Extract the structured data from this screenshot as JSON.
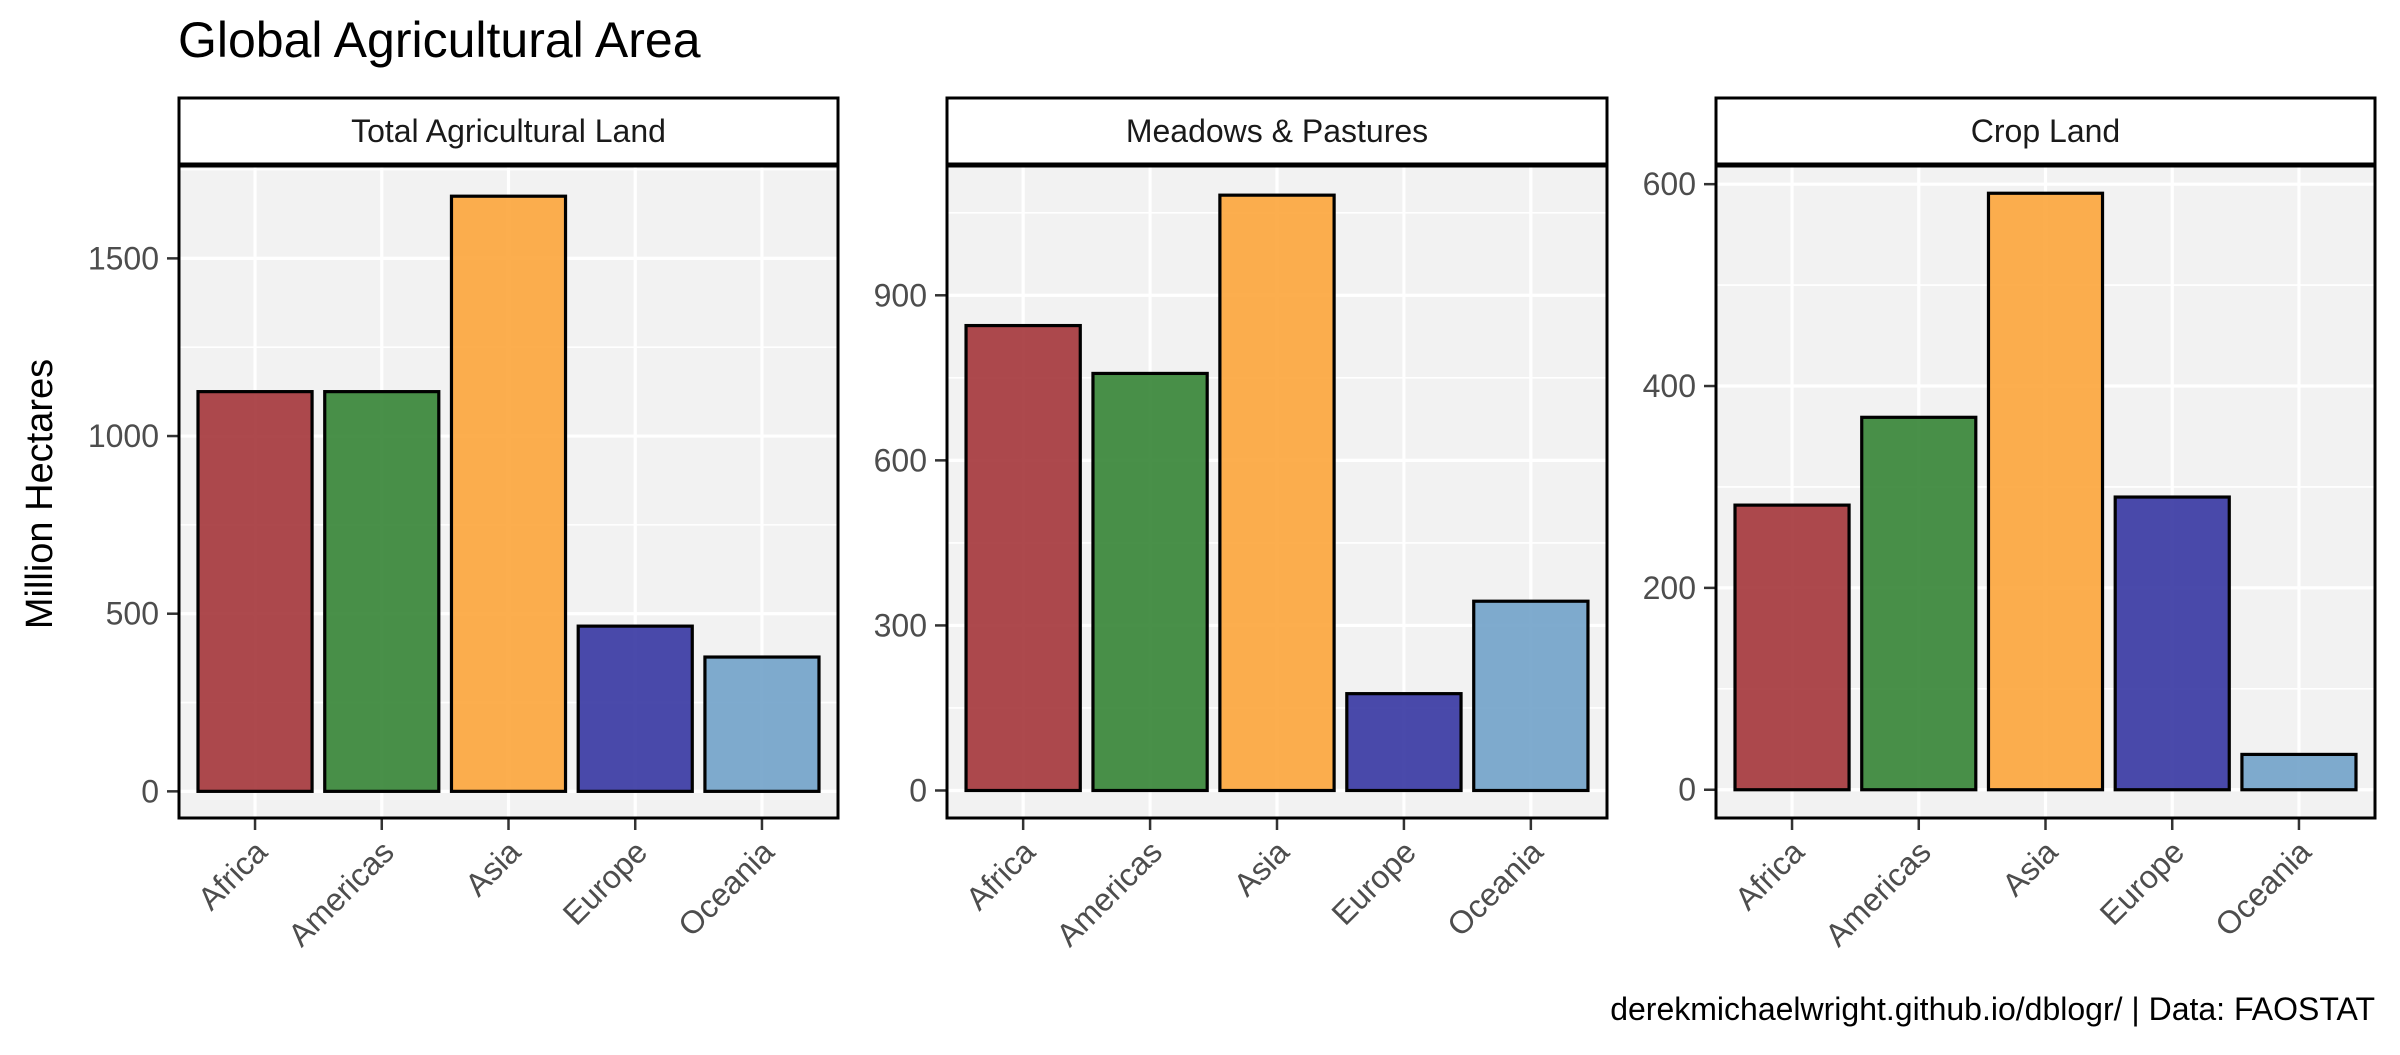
{
  "chart_data": {
    "type": "bar",
    "title": "Global Agricultural Area",
    "ylabel": "Million Hectares",
    "caption": "derekmichaelwright.github.io/dblogr/ | Data: FAOSTAT",
    "categories": [
      "Africa",
      "Americas",
      "Asia",
      "Europe",
      "Oceania"
    ],
    "colors": [
      "#A63A3E",
      "#3A873A",
      "#FCA73F",
      "#3B3BA4",
      "#74A4CA"
    ],
    "grid": true,
    "legend": "none",
    "facets": [
      {
        "strip": "Total Agricultural Land",
        "values": [
          1125,
          1125,
          1675,
          465,
          378
        ],
        "ylim": [
          -75,
          1760
        ],
        "yticks": [
          0,
          500,
          1000,
          1500
        ]
      },
      {
        "strip": "Meadows & Pastures",
        "values": [
          845,
          758,
          1082,
          176,
          344
        ],
        "ylim": [
          -50,
          1135
        ],
        "yticks": [
          0,
          300,
          600,
          900
        ]
      },
      {
        "strip": "Crop Land",
        "values": [
          282,
          369,
          591,
          290,
          35
        ],
        "ylim": [
          -28,
          618
        ],
        "yticks": [
          0,
          200,
          400,
          600
        ]
      }
    ]
  }
}
